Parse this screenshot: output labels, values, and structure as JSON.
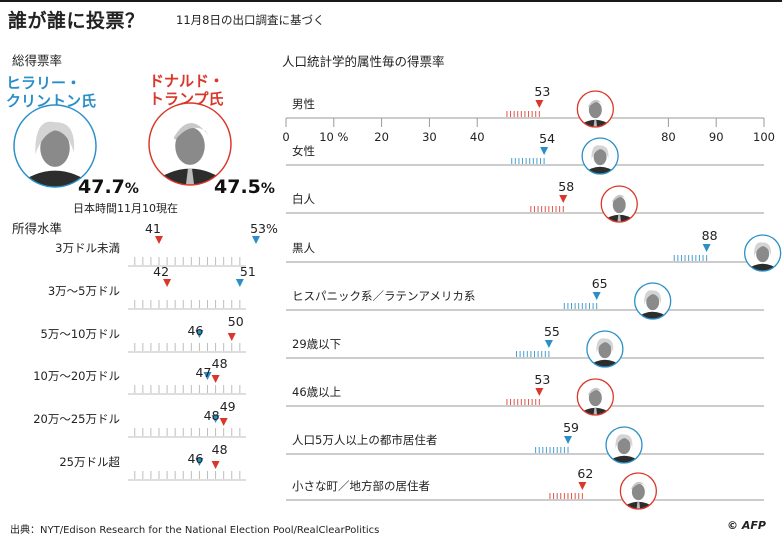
{
  "title": "誰が誰に投票？",
  "subtitle": "11月8日の出口調査に基づく",
  "overall": {
    "header": "総得票率",
    "clinton": {
      "name_line1": "ヒラリー・",
      "name_line2": "クリントン氏",
      "pct": "47.7",
      "pct_suffix": "%",
      "color": "#2a8fc7"
    },
    "trump": {
      "name_line1": "ドナルド・",
      "name_line2": "トランプ氏",
      "pct": "47.5",
      "pct_suffix": "%",
      "color": "#d9372a"
    },
    "note": "日本時間11月10現在"
  },
  "chart_data": [
    {
      "type": "dot",
      "title": "所得水準",
      "categories": [
        "3万ドル未満",
        "3万～5万ドル",
        "5万～10万ドル",
        "10万～20万ドル",
        "20万～25万ドル",
        "25万ドル超"
      ],
      "series": [
        {
          "name": "トランプ",
          "color": "#d9372a",
          "values": [
            41,
            42,
            50,
            48,
            49,
            48
          ]
        },
        {
          "name": "クリントン",
          "color": "#2a8fc7",
          "values": [
            53,
            51,
            46,
            47,
            48,
            46
          ]
        }
      ],
      "value_labels": {
        "trump": [
          "41",
          "42",
          "50",
          "48",
          "49",
          "48"
        ],
        "clinton": [
          "53%",
          "51",
          "46",
          "47",
          "48",
          "46"
        ]
      },
      "xlim": [
        30,
        60
      ]
    },
    {
      "type": "dot",
      "title": "人口統計学的属性毎の得票率",
      "x_ticks": [
        0,
        10,
        20,
        30,
        40,
        80,
        90,
        100
      ],
      "x_tick_labels": [
        "0",
        "10 %",
        "20",
        "30",
        "40",
        "80",
        "90",
        "100"
      ],
      "xlim": [
        0,
        100
      ],
      "categories": [
        "男性",
        "女性",
        "白人",
        "黒人",
        "ヒスパニック系／ラテンアメリカ系",
        "29歳以下",
        "46歳以上",
        "人口5万人以上の都市居住者",
        "小さな町／地方部の居住者"
      ],
      "winner": [
        "トランプ",
        "クリントン",
        "トランプ",
        "クリントン",
        "クリントン",
        "クリントン",
        "トランプ",
        "クリントン",
        "トランプ"
      ],
      "values": [
        53,
        54,
        58,
        88,
        65,
        55,
        53,
        59,
        62
      ]
    }
  ],
  "source": "出典：NYT/Edison Research for the National Election Pool/RealClearPolitics",
  "credit": "© AFP"
}
